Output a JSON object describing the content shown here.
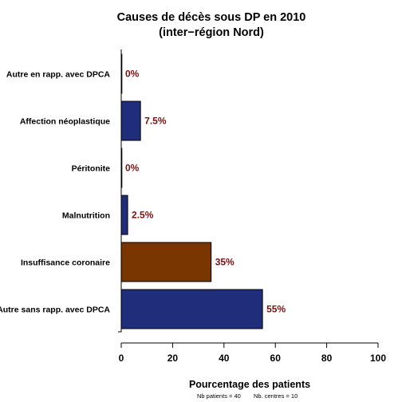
{
  "chart_data": {
    "type": "bar",
    "orientation": "horizontal",
    "title_lines": [
      "Causes de décès sous DP en 2010",
      "(inter−région Nord)"
    ],
    "categories": [
      "Autre en rapp. avec DPCA",
      "Affection néoplastique",
      "Péritonite",
      "Malnutrition",
      "Insuffisance coronaire",
      "Autre sans rapp. avec DPCA"
    ],
    "values": [
      0,
      7.5,
      0,
      2.5,
      35,
      55
    ],
    "value_labels": [
      "0%",
      "7.5%",
      "0%",
      "2.5%",
      "35%",
      "55%"
    ],
    "bar_colors": [
      "#1f2d7a",
      "#1f2d7a",
      "#1f2d7a",
      "#1f2d7a",
      "#7a3600",
      "#1f2d7a"
    ],
    "value_label_color": "#7a1010",
    "xlabel": "Pourcentage des patients",
    "xlim": [
      0,
      100
    ],
    "xticks": [
      0,
      20,
      40,
      60,
      80,
      100
    ],
    "grid": false,
    "legend": "none"
  },
  "footnote": {
    "patients": "Nb patients = 40",
    "centres": "Nb. centres = 10"
  }
}
